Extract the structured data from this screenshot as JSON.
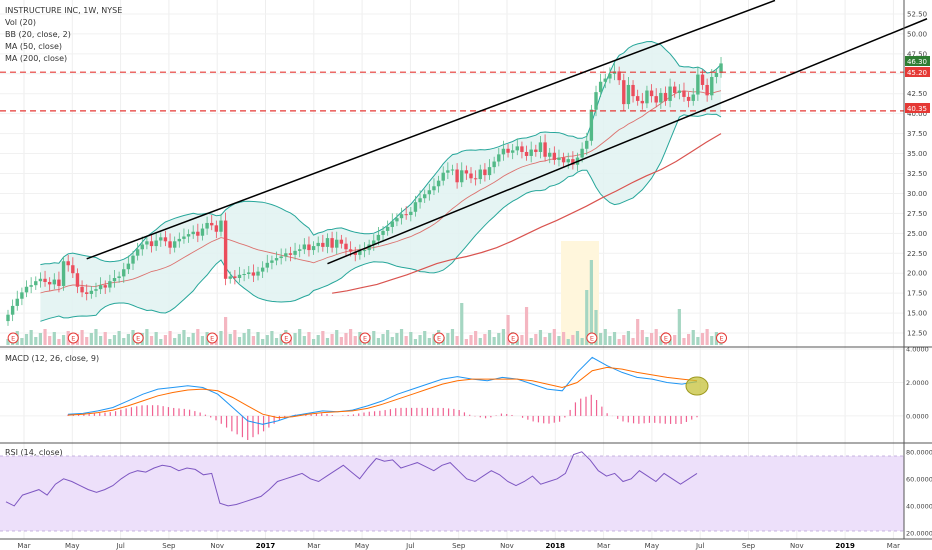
{
  "colors": {
    "up": "#53b987",
    "down": "#eb4d5c",
    "bb": "#26a69a",
    "bb_fill": "#e0f2f1",
    "ma50": "#ef9a2a",
    "ma200": "#d9534f",
    "trendline": "#000000",
    "hline": "#e53935",
    "macd_line": "#2196f3",
    "signal_line": "#ff6d00",
    "hist": "#e91e63",
    "rsi_line": "#7e57c2",
    "rsi_band": "#ede0fa",
    "vol_up": "#a5d6c2",
    "vol_down": "#f4b6c1",
    "highlight": "#fff6dc",
    "circle_fill": "#c5c23a",
    "earnings": "#e53935",
    "price_label_bg": "#2e7d32",
    "level_label_bg": "#e53935"
  },
  "main_panel": {
    "title": "INSTRUCTURE INC, 1W, NYSE",
    "legend": [
      "Vol (20)",
      "BB (20, close, 2)",
      "MA (50, close)",
      "MA (200, close)"
    ],
    "current_price_label": "46.30",
    "level_labels": [
      "45.20",
      "40.35"
    ]
  },
  "macd_panel": {
    "title": "MACD (12, 26, close, 9)"
  },
  "rsi_panel": {
    "title": "RSI (14, close)"
  },
  "earnings_marker": "E",
  "chart_data": {
    "type": "candlestick",
    "x_axis": {
      "labels": [
        "Mar",
        "May",
        "Jul",
        "Sep",
        "Nov",
        "2017",
        "Mar",
        "May",
        "Jul",
        "Sep",
        "Nov",
        "2018",
        "Mar",
        "May",
        "Jul",
        "Sep",
        "Nov",
        "2019",
        "Mar"
      ],
      "start": "2016-03",
      "end": "2019-03"
    },
    "price_axis": {
      "ticks": [
        "52.50",
        "50.00",
        "47.50",
        "45.00",
        "42.50",
        "40.00",
        "37.50",
        "35.00",
        "32.50",
        "30.00",
        "27.50",
        "25.00",
        "22.50",
        "20.00",
        "17.50",
        "15.00",
        "12.50"
      ],
      "ylim": [
        11,
        54
      ]
    },
    "weekly_close": [
      14.8,
      15.9,
      16.8,
      17.6,
      18.3,
      18.5,
      19.0,
      19.3,
      18.9,
      18.6,
      19.2,
      18.4,
      21.5,
      21.0,
      20.0,
      18.3,
      17.6,
      17.4,
      17.8,
      18.0,
      18.5,
      18.2,
      19.0,
      19.4,
      19.6,
      20.5,
      21.2,
      22.2,
      23.0,
      23.6,
      24.0,
      23.4,
      24.1,
      24.5,
      24.0,
      23.2,
      24.0,
      24.3,
      24.6,
      24.9,
      25.2,
      24.7,
      25.6,
      26.3,
      26.0,
      25.2,
      26.6,
      19.3,
      19.6,
      19.4,
      19.8,
      19.9,
      20.1,
      19.7,
      20.2,
      20.7,
      21.3,
      21.6,
      21.9,
      22.1,
      22.5,
      22.3,
      22.8,
      23.0,
      23.6,
      22.9,
      23.4,
      23.8,
      23.3,
      24.4,
      23.2,
      24.2,
      23.7,
      23.0,
      22.7,
      22.3,
      22.8,
      22.9,
      23.6,
      24.1,
      24.8,
      25.3,
      25.8,
      26.5,
      26.9,
      27.4,
      27.3,
      27.7,
      28.9,
      29.4,
      29.9,
      30.4,
      30.9,
      31.6,
      32.6,
      32.9,
      33.0,
      31.4,
      32.9,
      32.5,
      31.9,
      31.8,
      33.0,
      32.3,
      33.3,
      34.0,
      34.9,
      35.6,
      35.1,
      35.4,
      35.9,
      35.2,
      34.7,
      35.5,
      35.2,
      36.4,
      34.6,
      35.1,
      34.2,
      34.5,
      33.9,
      34.3,
      33.6,
      34.5,
      35.6,
      36.6,
      40.5,
      42.7,
      44.0,
      44.4,
      45.0,
      45.3,
      44.2,
      41.2,
      43.6,
      42.2,
      41.6,
      41.3,
      42.9,
      42.2,
      41.4,
      42.6,
      41.6,
      43.4,
      42.6,
      42.9,
      42.1,
      41.6,
      42.4,
      44.9,
      43.6,
      42.3,
      44.6,
      45.1,
      46.3
    ],
    "series": [
      {
        "name": "MA (50, close)",
        "values": [
          17.5,
          17.8,
          18.2,
          18.6,
          19.2,
          19.8,
          20.5,
          21.2,
          21.7,
          22.1,
          22.6,
          23.2,
          24.0,
          24.9,
          25.8,
          26.6,
          27.5,
          28.4,
          29.4,
          30.3,
          31.3,
          32.2,
          33.0,
          34.0,
          35.2,
          36.4,
          37.5
        ]
      },
      {
        "name": "MA (200, close)",
        "values": []
      }
    ],
    "macd": {
      "ticks": [
        "4.0000",
        "2.0000",
        "0.0000"
      ],
      "ylim": [
        -1.5,
        4.0
      ],
      "macd_line": [
        0.1,
        0.15,
        0.3,
        0.5,
        0.9,
        1.3,
        1.6,
        1.7,
        1.8,
        1.7,
        1.3,
        0.5,
        -0.3,
        -0.5,
        -0.3,
        0.0,
        0.15,
        0.3,
        0.25,
        0.35,
        0.6,
        0.9,
        1.3,
        1.6,
        1.9,
        2.2,
        2.35,
        2.2,
        2.1,
        2.3,
        2.2,
        1.9,
        1.6,
        1.5,
        2.6,
        3.5,
        3.0,
        2.6,
        2.3,
        2.2,
        2.0,
        1.9,
        2.05
      ],
      "signal_line": [
        0.05,
        0.1,
        0.2,
        0.35,
        0.6,
        0.9,
        1.2,
        1.4,
        1.55,
        1.6,
        1.5,
        1.1,
        0.6,
        0.1,
        -0.1,
        -0.05,
        0.1,
        0.2,
        0.25,
        0.3,
        0.45,
        0.7,
        1.0,
        1.3,
        1.6,
        1.9,
        2.1,
        2.2,
        2.2,
        2.2,
        2.2,
        2.1,
        1.9,
        1.7,
        2.0,
        2.7,
        2.9,
        2.8,
        2.6,
        2.45,
        2.3,
        2.2,
        2.1
      ]
    },
    "rsi": {
      "ticks": [
        "80.0000",
        "60.0000",
        "40.0000",
        "20.0000"
      ],
      "ylim": [
        17,
        85
      ],
      "band": [
        30,
        80
      ],
      "values": [
        43,
        40,
        48,
        50,
        52,
        48,
        56,
        60,
        58,
        55,
        52,
        50,
        52,
        55,
        60,
        64,
        66,
        65,
        68,
        70,
        69,
        66,
        68,
        67,
        63,
        64,
        42,
        40,
        41,
        43,
        45,
        47,
        52,
        58,
        60,
        62,
        64,
        60,
        58,
        62,
        66,
        70,
        65,
        60,
        68,
        75,
        73,
        74,
        68,
        70,
        72,
        69,
        66,
        70,
        72,
        66,
        60,
        58,
        62,
        66,
        63,
        58,
        55,
        58,
        62,
        56,
        58,
        60,
        64,
        78,
        80,
        74,
        66,
        62,
        64,
        58,
        60,
        66,
        62,
        58,
        64,
        60,
        56,
        60,
        64
      ]
    }
  }
}
